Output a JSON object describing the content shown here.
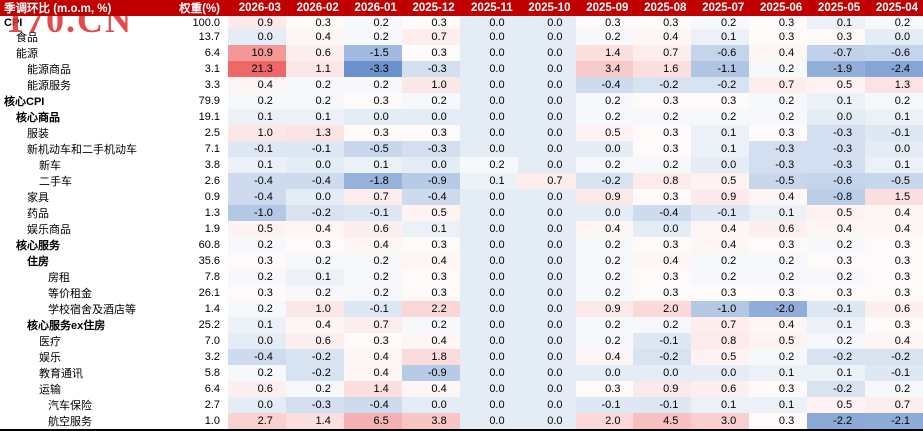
{
  "watermark": "170.CN",
  "colors": {
    "header_bg": "#C00000",
    "header_text": "#FFFFFF",
    "watermark_red": "#DF2B2B",
    "positive_max_color": "#EE6868",
    "negative_max_color": "#6A92CC"
  },
  "chart_data": {
    "type": "heatmap",
    "title": "季调环比 (m.o.m, %)",
    "weight_header": "权重(%)",
    "columns": [
      "2026-03",
      "2026-02",
      "2026-01",
      "2025-12",
      "2025-11",
      "2025-10",
      "2025-09",
      "2025-08",
      "2025-07",
      "2025-06",
      "2025-05",
      "2025-04"
    ],
    "color_scale": {
      "min": -3.3,
      "max": 21.3,
      "midpoint": 0.25,
      "neg_color": [
        106,
        146,
        204
      ],
      "pos_color": [
        238,
        104,
        104
      ]
    },
    "rows": [
      {
        "label": "CPI",
        "weight": "100.0",
        "indent": 0,
        "bold": true,
        "values": [
          0.9,
          0.3,
          0.2,
          0.3,
          0.0,
          0.0,
          0.3,
          0.3,
          0.2,
          0.3,
          0.1,
          0.2
        ]
      },
      {
        "label": "食品",
        "weight": "13.7",
        "indent": 1,
        "bold": false,
        "values": [
          0.0,
          0.4,
          0.2,
          0.7,
          0.0,
          0.0,
          0.2,
          0.4,
          0.1,
          0.3,
          0.3,
          0.0
        ]
      },
      {
        "label": "能源",
        "weight": "6.4",
        "indent": 1,
        "bold": false,
        "values": [
          10.9,
          0.6,
          -1.5,
          0.3,
          0.0,
          0.0,
          1.4,
          0.7,
          -0.6,
          0.4,
          -0.7,
          -0.6
        ]
      },
      {
        "label": "能源商品",
        "weight": "3.1",
        "indent": 2,
        "bold": false,
        "values": [
          21.3,
          1.1,
          -3.3,
          -0.3,
          0.0,
          0.0,
          3.4,
          1.6,
          -1.1,
          0.2,
          -1.9,
          -2.4
        ]
      },
      {
        "label": "能源服务",
        "weight": "3.3",
        "indent": 2,
        "bold": false,
        "values": [
          0.4,
          0.2,
          0.2,
          1.0,
          0.0,
          0.0,
          -0.4,
          -0.2,
          -0.2,
          0.7,
          0.5,
          1.3
        ]
      },
      {
        "label": "核心CPI",
        "weight": "79.9",
        "indent": 0,
        "bold": true,
        "values": [
          0.2,
          0.2,
          0.3,
          0.2,
          0.0,
          0.0,
          0.2,
          0.3,
          0.3,
          0.2,
          0.1,
          0.2
        ]
      },
      {
        "label": "核心商品",
        "weight": "19.1",
        "indent": 1,
        "bold": true,
        "values": [
          0.1,
          0.1,
          0.0,
          0.0,
          0.0,
          0.0,
          0.2,
          0.2,
          0.2,
          0.2,
          0.0,
          0.1
        ]
      },
      {
        "label": "服装",
        "weight": "2.5",
        "indent": 2,
        "bold": false,
        "values": [
          1.0,
          1.3,
          0.3,
          0.3,
          0.0,
          0.0,
          0.5,
          0.3,
          0.1,
          0.3,
          -0.3,
          -0.1
        ]
      },
      {
        "label": "新机动车和二手机动车",
        "weight": "7.1",
        "indent": 2,
        "bold": false,
        "values": [
          -0.1,
          -0.1,
          -0.5,
          -0.3,
          0.0,
          0.0,
          0.0,
          0.3,
          0.1,
          -0.3,
          -0.3,
          0.0
        ]
      },
      {
        "label": "新车",
        "weight": "3.8",
        "indent": 3,
        "bold": false,
        "values": [
          0.1,
          0.0,
          0.1,
          0.0,
          0.2,
          0.0,
          0.2,
          0.2,
          0.0,
          -0.3,
          -0.3,
          0.1
        ]
      },
      {
        "label": "二手车",
        "weight": "2.6",
        "indent": 3,
        "bold": false,
        "values": [
          -0.4,
          -0.4,
          -1.8,
          -0.9,
          0.1,
          0.7,
          -0.2,
          0.8,
          0.5,
          -0.5,
          -0.6,
          -0.5
        ]
      },
      {
        "label": "家具",
        "weight": "0.9",
        "indent": 2,
        "bold": false,
        "values": [
          -0.4,
          0.0,
          0.7,
          -0.4,
          0.0,
          0.0,
          0.9,
          0.3,
          0.9,
          0.4,
          -0.8,
          1.5
        ]
      },
      {
        "label": "药品",
        "weight": "1.3",
        "indent": 2,
        "bold": false,
        "values": [
          -1.0,
          -0.2,
          -0.1,
          0.5,
          0.0,
          0.0,
          0.0,
          -0.4,
          -0.1,
          0.1,
          0.5,
          0.4
        ]
      },
      {
        "label": "娱乐商品",
        "weight": "1.9",
        "indent": 2,
        "bold": false,
        "values": [
          0.5,
          0.4,
          0.6,
          0.1,
          0.0,
          0.0,
          0.4,
          0.0,
          0.4,
          0.6,
          0.4,
          0.4
        ]
      },
      {
        "label": "核心服务",
        "weight": "60.8",
        "indent": 1,
        "bold": true,
        "values": [
          0.2,
          0.3,
          0.4,
          0.3,
          0.0,
          0.0,
          0.2,
          0.3,
          0.4,
          0.3,
          0.2,
          0.3
        ]
      },
      {
        "label": "住房",
        "weight": "35.6",
        "indent": 2,
        "bold": true,
        "values": [
          0.3,
          0.2,
          0.2,
          0.4,
          0.0,
          0.0,
          0.2,
          0.4,
          0.2,
          0.2,
          0.3,
          0.3
        ]
      },
      {
        "label": "房租",
        "weight": "7.8",
        "indent": 4,
        "bold": false,
        "values": [
          0.2,
          0.1,
          0.2,
          0.3,
          0.0,
          0.0,
          0.2,
          0.3,
          0.2,
          0.2,
          0.2,
          0.3
        ]
      },
      {
        "label": "等价租金",
        "weight": "26.1",
        "indent": 4,
        "bold": false,
        "values": [
          0.3,
          0.2,
          0.2,
          0.3,
          0.0,
          0.0,
          0.2,
          0.3,
          0.3,
          0.3,
          0.3,
          0.3
        ]
      },
      {
        "label": "学校宿舍及酒店等",
        "weight": "1.4",
        "indent": 4,
        "bold": false,
        "values": [
          0.2,
          1.0,
          -0.1,
          2.2,
          0.0,
          0.0,
          0.9,
          2.0,
          -1.0,
          -2.0,
          -0.1,
          0.6
        ]
      },
      {
        "label": "核心服务ex住房",
        "weight": "25.2",
        "indent": 2,
        "bold": true,
        "values": [
          0.1,
          0.4,
          0.7,
          0.2,
          0.0,
          0.0,
          0.2,
          0.2,
          0.7,
          0.4,
          0.1,
          0.3
        ]
      },
      {
        "label": "医疗",
        "weight": "7.0",
        "indent": 3,
        "bold": false,
        "values": [
          0.0,
          0.6,
          0.3,
          0.4,
          0.0,
          0.0,
          0.2,
          -0.1,
          0.8,
          0.5,
          0.2,
          0.4
        ]
      },
      {
        "label": "娱乐",
        "weight": "3.2",
        "indent": 3,
        "bold": false,
        "values": [
          -0.4,
          -0.2,
          0.4,
          1.8,
          0.0,
          0.0,
          0.4,
          -0.2,
          0.5,
          0.2,
          -0.2,
          -0.2
        ]
      },
      {
        "label": "教育通讯",
        "weight": "5.8",
        "indent": 3,
        "bold": false,
        "values": [
          0.2,
          -0.2,
          0.4,
          -0.9,
          0.0,
          0.0,
          0.0,
          0.0,
          0.0,
          0.1,
          0.1,
          -0.1
        ]
      },
      {
        "label": "运输",
        "weight": "6.4",
        "indent": 3,
        "bold": false,
        "values": [
          0.6,
          0.2,
          1.4,
          0.4,
          0.0,
          0.0,
          0.3,
          0.9,
          0.6,
          0.3,
          -0.2,
          0.2
        ]
      },
      {
        "label": "汽车保险",
        "weight": "2.7",
        "indent": 4,
        "bold": false,
        "values": [
          0.0,
          -0.3,
          -0.4,
          0.0,
          0.0,
          0.0,
          -0.1,
          -0.1,
          0.1,
          0.1,
          0.5,
          0.7
        ]
      },
      {
        "label": "航空服务",
        "weight": "1.0",
        "indent": 4,
        "bold": false,
        "values": [
          2.7,
          1.4,
          6.5,
          3.8,
          0.0,
          0.0,
          2.0,
          4.5,
          3.0,
          0.3,
          -2.2,
          -2.1
        ]
      }
    ]
  }
}
